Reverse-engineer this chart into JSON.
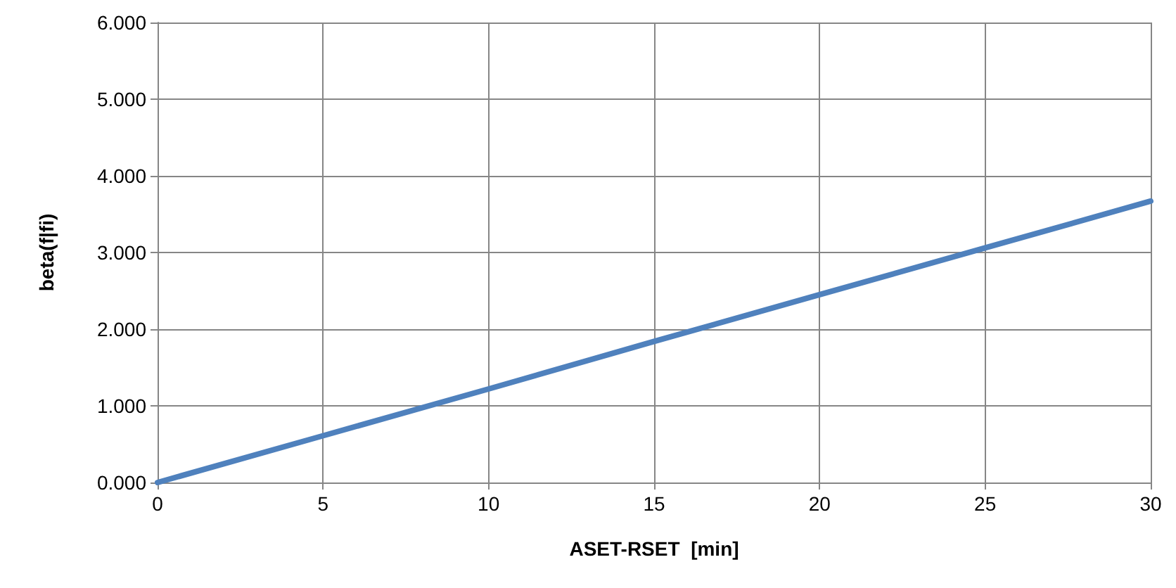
{
  "chart_data": {
    "type": "line",
    "xlabel": "ASET-RSET  [min]",
    "ylabel": "beta(f|fi)",
    "x": [
      0,
      5,
      10,
      15,
      20,
      25,
      30
    ],
    "series": [
      {
        "color": "#4f81bd",
        "values": [
          0,
          0.61,
          1.22,
          1.84,
          2.45,
          3.06,
          3.67
        ]
      }
    ],
    "xlim": [
      0,
      30
    ],
    "xticks": [
      0,
      5,
      10,
      15,
      20,
      25,
      30
    ],
    "ylim": [
      0,
      6
    ],
    "yticks": [
      {
        "value": 0,
        "label": "0.000"
      },
      {
        "value": 1,
        "label": "1.000"
      },
      {
        "value": 2,
        "label": "2.000"
      },
      {
        "value": 3,
        "label": "3.000"
      },
      {
        "value": 4,
        "label": "4.000"
      },
      {
        "value": 5,
        "label": "5.000"
      },
      {
        "value": 6,
        "label": "6.000"
      }
    ],
    "grid": true,
    "marker": "none",
    "line_style": "solid"
  }
}
